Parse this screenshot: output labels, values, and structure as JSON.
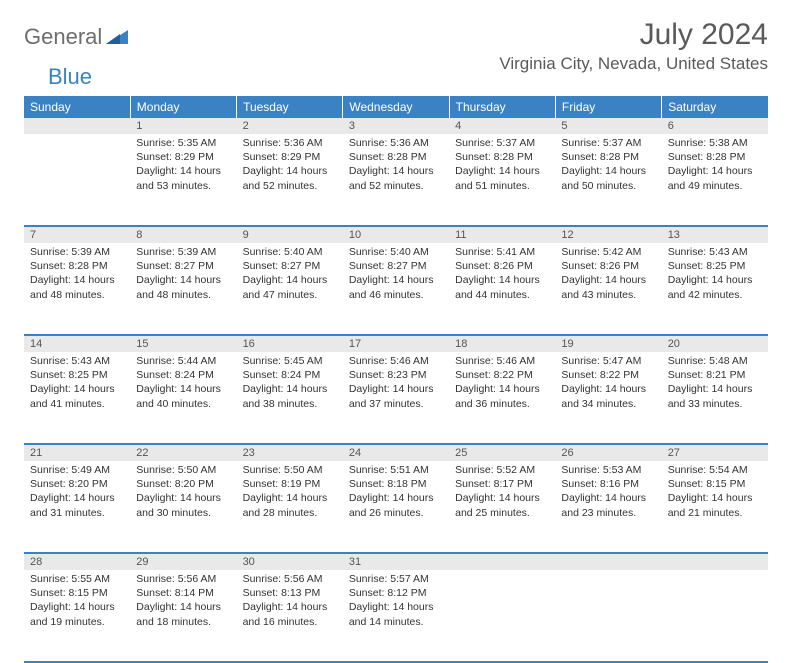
{
  "logo": {
    "general": "General",
    "blue": "Blue"
  },
  "title": "July 2024",
  "location": "Virginia City, Nevada, United States",
  "colors": {
    "header_bg": "#3a82c4",
    "header_text": "#ffffff",
    "daynum_bg": "#e9e9e9",
    "border": "#3a82c4",
    "text": "#333333",
    "title_text": "#5a5a5a"
  },
  "day_headers": [
    "Sunday",
    "Monday",
    "Tuesday",
    "Wednesday",
    "Thursday",
    "Friday",
    "Saturday"
  ],
  "weeks": [
    {
      "nums": [
        "",
        "1",
        "2",
        "3",
        "4",
        "5",
        "6"
      ],
      "cells": [
        null,
        {
          "sunrise": "5:35 AM",
          "sunset": "8:29 PM",
          "daylight": "14 hours and 53 minutes."
        },
        {
          "sunrise": "5:36 AM",
          "sunset": "8:29 PM",
          "daylight": "14 hours and 52 minutes."
        },
        {
          "sunrise": "5:36 AM",
          "sunset": "8:28 PM",
          "daylight": "14 hours and 52 minutes."
        },
        {
          "sunrise": "5:37 AM",
          "sunset": "8:28 PM",
          "daylight": "14 hours and 51 minutes."
        },
        {
          "sunrise": "5:37 AM",
          "sunset": "8:28 PM",
          "daylight": "14 hours and 50 minutes."
        },
        {
          "sunrise": "5:38 AM",
          "sunset": "8:28 PM",
          "daylight": "14 hours and 49 minutes."
        }
      ]
    },
    {
      "nums": [
        "7",
        "8",
        "9",
        "10",
        "11",
        "12",
        "13"
      ],
      "cells": [
        {
          "sunrise": "5:39 AM",
          "sunset": "8:28 PM",
          "daylight": "14 hours and 48 minutes."
        },
        {
          "sunrise": "5:39 AM",
          "sunset": "8:27 PM",
          "daylight": "14 hours and 48 minutes."
        },
        {
          "sunrise": "5:40 AM",
          "sunset": "8:27 PM",
          "daylight": "14 hours and 47 minutes."
        },
        {
          "sunrise": "5:40 AM",
          "sunset": "8:27 PM",
          "daylight": "14 hours and 46 minutes."
        },
        {
          "sunrise": "5:41 AM",
          "sunset": "8:26 PM",
          "daylight": "14 hours and 44 minutes."
        },
        {
          "sunrise": "5:42 AM",
          "sunset": "8:26 PM",
          "daylight": "14 hours and 43 minutes."
        },
        {
          "sunrise": "5:43 AM",
          "sunset": "8:25 PM",
          "daylight": "14 hours and 42 minutes."
        }
      ]
    },
    {
      "nums": [
        "14",
        "15",
        "16",
        "17",
        "18",
        "19",
        "20"
      ],
      "cells": [
        {
          "sunrise": "5:43 AM",
          "sunset": "8:25 PM",
          "daylight": "14 hours and 41 minutes."
        },
        {
          "sunrise": "5:44 AM",
          "sunset": "8:24 PM",
          "daylight": "14 hours and 40 minutes."
        },
        {
          "sunrise": "5:45 AM",
          "sunset": "8:24 PM",
          "daylight": "14 hours and 38 minutes."
        },
        {
          "sunrise": "5:46 AM",
          "sunset": "8:23 PM",
          "daylight": "14 hours and 37 minutes."
        },
        {
          "sunrise": "5:46 AM",
          "sunset": "8:22 PM",
          "daylight": "14 hours and 36 minutes."
        },
        {
          "sunrise": "5:47 AM",
          "sunset": "8:22 PM",
          "daylight": "14 hours and 34 minutes."
        },
        {
          "sunrise": "5:48 AM",
          "sunset": "8:21 PM",
          "daylight": "14 hours and 33 minutes."
        }
      ]
    },
    {
      "nums": [
        "21",
        "22",
        "23",
        "24",
        "25",
        "26",
        "27"
      ],
      "cells": [
        {
          "sunrise": "5:49 AM",
          "sunset": "8:20 PM",
          "daylight": "14 hours and 31 minutes."
        },
        {
          "sunrise": "5:50 AM",
          "sunset": "8:20 PM",
          "daylight": "14 hours and 30 minutes."
        },
        {
          "sunrise": "5:50 AM",
          "sunset": "8:19 PM",
          "daylight": "14 hours and 28 minutes."
        },
        {
          "sunrise": "5:51 AM",
          "sunset": "8:18 PM",
          "daylight": "14 hours and 26 minutes."
        },
        {
          "sunrise": "5:52 AM",
          "sunset": "8:17 PM",
          "daylight": "14 hours and 25 minutes."
        },
        {
          "sunrise": "5:53 AM",
          "sunset": "8:16 PM",
          "daylight": "14 hours and 23 minutes."
        },
        {
          "sunrise": "5:54 AM",
          "sunset": "8:15 PM",
          "daylight": "14 hours and 21 minutes."
        }
      ]
    },
    {
      "nums": [
        "28",
        "29",
        "30",
        "31",
        "",
        "",
        ""
      ],
      "cells": [
        {
          "sunrise": "5:55 AM",
          "sunset": "8:15 PM",
          "daylight": "14 hours and 19 minutes."
        },
        {
          "sunrise": "5:56 AM",
          "sunset": "8:14 PM",
          "daylight": "14 hours and 18 minutes."
        },
        {
          "sunrise": "5:56 AM",
          "sunset": "8:13 PM",
          "daylight": "14 hours and 16 minutes."
        },
        {
          "sunrise": "5:57 AM",
          "sunset": "8:12 PM",
          "daylight": "14 hours and 14 minutes."
        },
        null,
        null,
        null
      ]
    }
  ],
  "labels": {
    "sunrise_prefix": "Sunrise: ",
    "sunset_prefix": "Sunset: ",
    "daylight_prefix": "Daylight: "
  }
}
